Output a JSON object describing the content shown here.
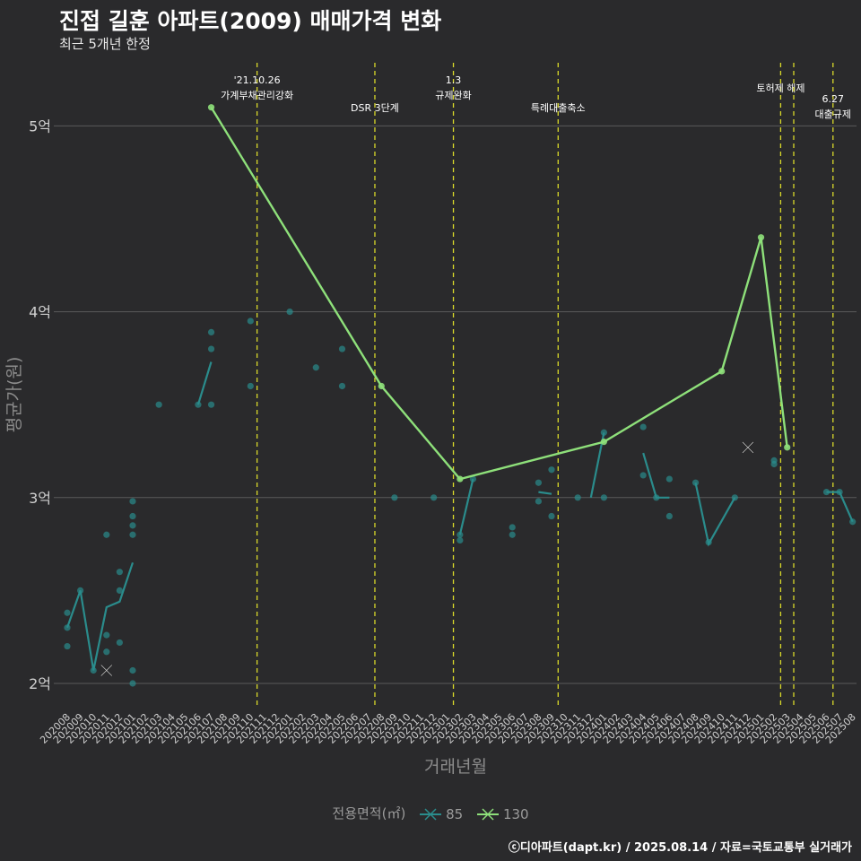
{
  "title": "진접 길훈 아파트(2009) 매매가격 변화",
  "subtitle": "최근 5개년 한정",
  "credit": "ⓒ디아파트(dapt.kr) / 2025.08.14 / 자료=국토교통부 실거래가",
  "colors": {
    "background": "#2a2a2c",
    "grid": "#5a5a5a",
    "series85": "#2a8c8c",
    "series130": "#8ee07a",
    "eventLine": "#d9d92a",
    "axisText": "#d0d0d0",
    "axisTitle": "#8c8c8c"
  },
  "chart_data": {
    "type": "line",
    "title": "진접 길훈 아파트(2009) 매매가격 변화",
    "subtitle": "최근 5개년 한정",
    "xlabel": "거래년월",
    "ylabel": "평균가(원)",
    "ylim": [
      1.87,
      5.3
    ],
    "yticks": [
      {
        "value": 2,
        "label": "2억"
      },
      {
        "value": 3,
        "label": "3억"
      },
      {
        "value": 4,
        "label": "4억"
      },
      {
        "value": 5,
        "label": "5억"
      }
    ],
    "categories": [
      "202008",
      "202009",
      "202010",
      "202011",
      "202012",
      "202101",
      "202102",
      "202103",
      "202104",
      "202105",
      "202106",
      "202107",
      "202108",
      "202109",
      "202110",
      "202111",
      "202112",
      "202201",
      "202202",
      "202203",
      "202204",
      "202205",
      "202206",
      "202207",
      "202208",
      "202209",
      "202210",
      "202211",
      "202212",
      "202301",
      "202302",
      "202303",
      "202304",
      "202305",
      "202306",
      "202307",
      "202308",
      "202309",
      "202310",
      "202311",
      "202312",
      "202401",
      "202402",
      "202403",
      "202404",
      "202405",
      "202406",
      "202407",
      "202408",
      "202409",
      "202410",
      "202411",
      "202412",
      "202501",
      "202502",
      "202503",
      "202504",
      "202505",
      "202506",
      "202507",
      "202508"
    ],
    "legend": {
      "title": "전용면적(㎡)",
      "entries": [
        "85",
        "130"
      ],
      "position": "bottom"
    },
    "events": [
      {
        "x": 14.5,
        "lines": [
          "'21.10.26",
          "가계부채관리강화"
        ]
      },
      {
        "x": 23.5,
        "lines": [
          "DSR 3단계"
        ]
      },
      {
        "x": 29.5,
        "lines": [
          "1.3",
          "규제완화"
        ]
      },
      {
        "x": 37.5,
        "lines": [
          "특례대출축소"
        ]
      },
      {
        "x": 54.5,
        "lines": [
          "토허제 해제"
        ]
      },
      {
        "x": 55.5,
        "lines": [
          ""
        ]
      },
      {
        "x": 58.5,
        "lines": [
          "6.27",
          "대출규제"
        ]
      }
    ],
    "series": [
      {
        "name": "85",
        "line": [
          [
            [
              0,
              2.3
            ],
            [
              1,
              2.5
            ],
            [
              2,
              2.07
            ],
            [
              3,
              2.41
            ],
            [
              4,
              2.44
            ],
            [
              5,
              2.65
            ]
          ],
          [
            [
              10,
              3.5
            ],
            [
              11,
              3.73
            ]
          ],
          [
            [
              30,
              2.8
            ],
            [
              31,
              3.1
            ]
          ],
          [
            [
              36,
              3.03
            ],
            [
              37,
              3.02
            ]
          ],
          [
            [
              40,
              3.0
            ],
            [
              41,
              3.35
            ]
          ],
          [
            [
              44,
              3.24
            ],
            [
              45,
              3.0
            ],
            [
              46,
              3.0
            ]
          ],
          [
            [
              48,
              3.08
            ],
            [
              49,
              2.75
            ],
            [
              51,
              3.0
            ]
          ],
          [
            [
              58,
              3.03
            ],
            [
              59,
              3.03
            ],
            [
              60,
              2.87
            ]
          ]
        ],
        "points": [
          [
            0,
            2.38
          ],
          [
            0,
            2.3
          ],
          [
            0,
            2.2
          ],
          [
            1,
            2.5
          ],
          [
            2,
            2.07
          ],
          [
            3,
            2.8
          ],
          [
            3,
            2.26
          ],
          [
            3,
            2.17
          ],
          [
            4,
            2.6
          ],
          [
            4,
            2.5
          ],
          [
            4,
            2.22
          ],
          [
            5,
            2.98
          ],
          [
            5,
            2.9
          ],
          [
            5,
            2.85
          ],
          [
            5,
            2.8
          ],
          [
            5,
            2.07
          ],
          [
            5,
            2.0
          ],
          [
            7,
            3.5
          ],
          [
            10,
            3.5
          ],
          [
            11,
            3.89
          ],
          [
            11,
            3.8
          ],
          [
            11,
            3.5
          ],
          [
            14,
            3.95
          ],
          [
            14,
            3.6
          ],
          [
            17,
            4.0
          ],
          [
            19,
            3.7
          ],
          [
            21,
            3.8
          ],
          [
            21,
            3.6
          ],
          [
            25,
            3.0
          ],
          [
            28,
            3.0
          ],
          [
            30,
            2.8
          ],
          [
            30,
            2.77
          ],
          [
            31,
            3.1
          ],
          [
            34,
            2.84
          ],
          [
            34,
            2.8
          ],
          [
            36,
            3.08
          ],
          [
            36,
            2.98
          ],
          [
            37,
            3.15
          ],
          [
            37,
            2.9
          ],
          [
            39,
            3.0
          ],
          [
            41,
            3.0
          ],
          [
            41,
            3.35
          ],
          [
            44,
            3.38
          ],
          [
            44,
            3.12
          ],
          [
            45,
            3.0
          ],
          [
            46,
            3.1
          ],
          [
            46,
            2.9
          ],
          [
            48,
            3.08
          ],
          [
            49,
            2.76
          ],
          [
            51,
            3.0
          ],
          [
            54,
            3.2
          ],
          [
            54,
            3.18
          ],
          [
            58,
            3.03
          ],
          [
            59,
            3.03
          ],
          [
            60,
            2.87
          ]
        ],
        "crosses": [
          [
            3,
            2.07
          ]
        ]
      },
      {
        "name": "130",
        "line": [
          [
            [
              11,
              5.1
            ],
            [
              24,
              3.6
            ],
            [
              30,
              3.1
            ],
            [
              41,
              3.3
            ],
            [
              50,
              3.68
            ],
            [
              53,
              4.4
            ],
            [
              55,
              3.27
            ]
          ]
        ],
        "points": [
          [
            11,
            5.1
          ],
          [
            24,
            3.6
          ],
          [
            30,
            3.1
          ],
          [
            41,
            3.3
          ],
          [
            50,
            3.68
          ],
          [
            53,
            4.4
          ],
          [
            55,
            3.27
          ]
        ],
        "crosses": [
          [
            52,
            3.27
          ]
        ]
      }
    ]
  }
}
